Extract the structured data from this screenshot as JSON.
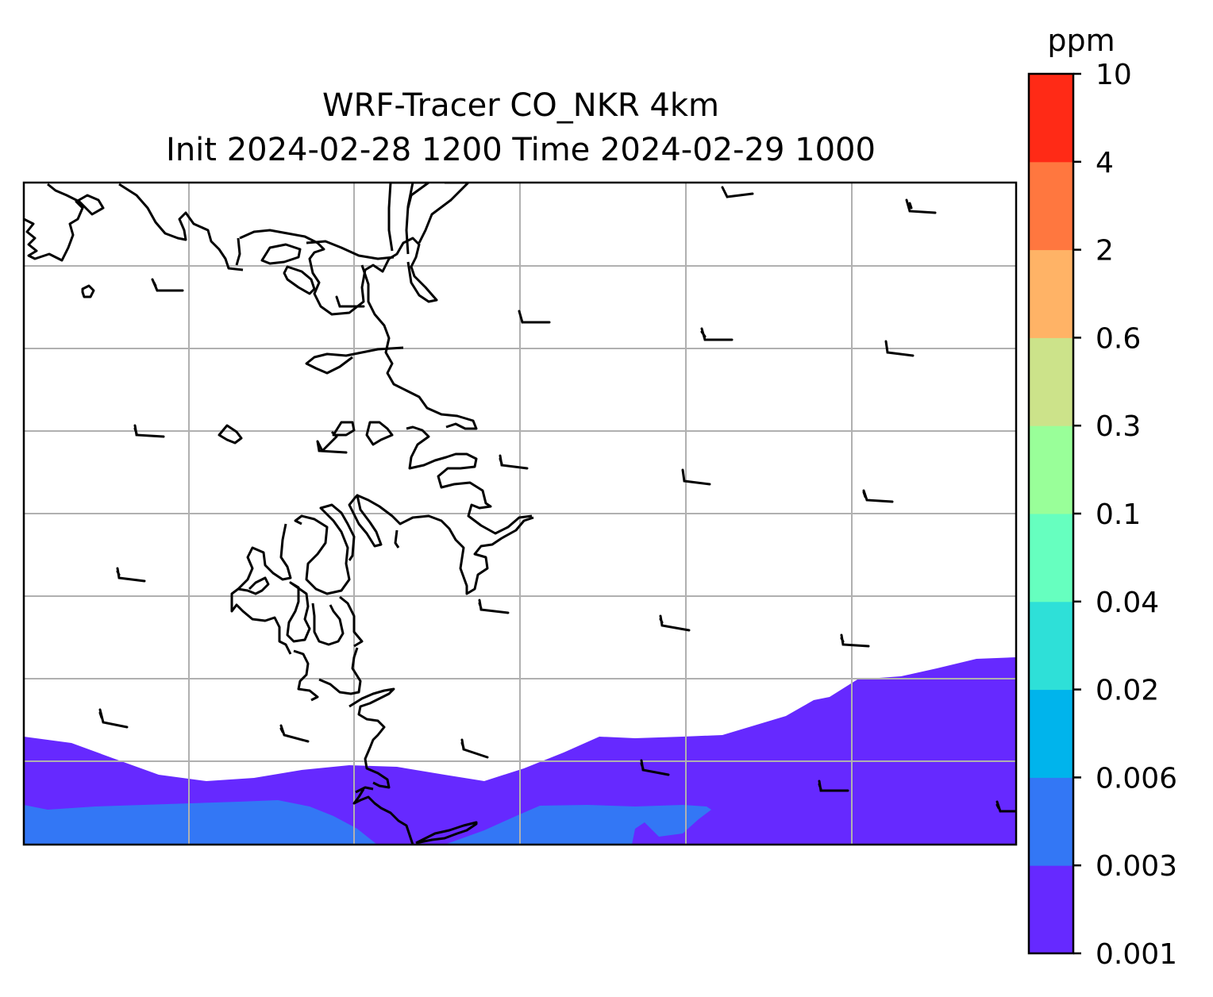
{
  "title": {
    "line1": "WRF-Tracer CO_NKR 4km",
    "line2": "Init 2024-02-28 1200 Time 2024-02-29 1000"
  },
  "colorbar": {
    "unit": "ppm",
    "ticks": [
      "0.001",
      "0.003",
      "0.006",
      "0.02",
      "0.04",
      "0.1",
      "0.3",
      "0.6",
      "2",
      "4",
      "10"
    ],
    "colors": [
      "#6629ff",
      "#3377f5",
      "#00b4ec",
      "#2ee0d8",
      "#66ffbf",
      "#99ff99",
      "#cce38a",
      "#ffb366",
      "#ff773f",
      "#ff2a16"
    ]
  },
  "map": {
    "field_levels_present": [
      "0.001",
      "0.003"
    ],
    "gridlines": true,
    "wind_barbs": true
  }
}
